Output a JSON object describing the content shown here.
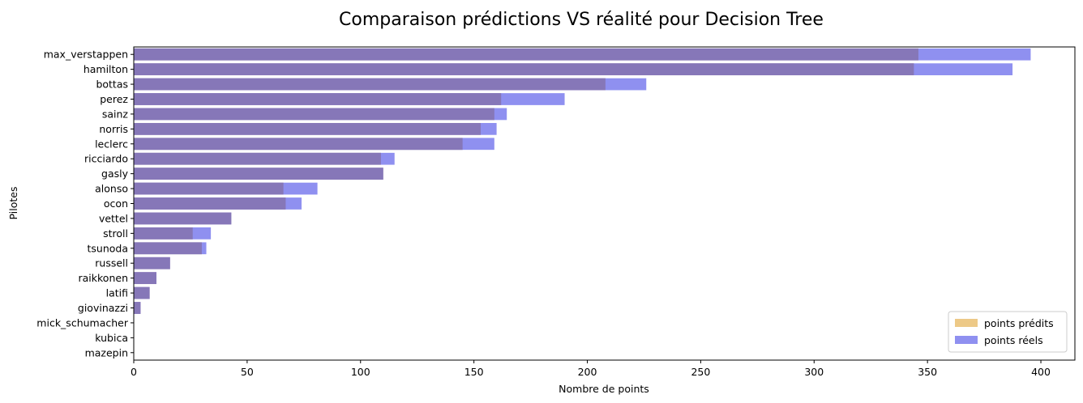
{
  "chart_data": {
    "type": "bar",
    "orientation": "horizontal",
    "title": "Comparaison prédictions VS réalité pour Decision Tree",
    "xlabel": "Nombre de points",
    "ylabel": "Pilotes",
    "xlim": [
      0,
      415
    ],
    "xticks": [
      0,
      50,
      100,
      150,
      200,
      250,
      300,
      350,
      400
    ],
    "grid": false,
    "legend_position": "lower-right",
    "categories": [
      "max_verstappen",
      "hamilton",
      "bottas",
      "perez",
      "sainz",
      "norris",
      "leclerc",
      "ricciardo",
      "gasly",
      "alonso",
      "ocon",
      "vettel",
      "stroll",
      "tsunoda",
      "russell",
      "raikkonen",
      "latifi",
      "giovinazzi",
      "mick_schumacher",
      "kubica",
      "mazepin"
    ],
    "series": [
      {
        "name": "points prédits",
        "color": "#EDC987",
        "values": [
          346,
          344,
          208,
          162,
          159,
          153,
          145,
          109,
          110,
          66,
          67,
          43,
          26,
          30,
          16,
          10,
          7,
          3,
          0,
          0,
          0
        ]
      },
      {
        "name": "points réels",
        "color": "#8F90F0",
        "values": [
          395.5,
          387.5,
          226,
          190,
          164.5,
          160,
          159,
          115,
          110,
          81,
          74,
          43,
          34,
          32,
          16,
          10,
          7,
          3,
          0,
          0,
          0
        ]
      }
    ],
    "overlap_color": "#8677B8"
  }
}
